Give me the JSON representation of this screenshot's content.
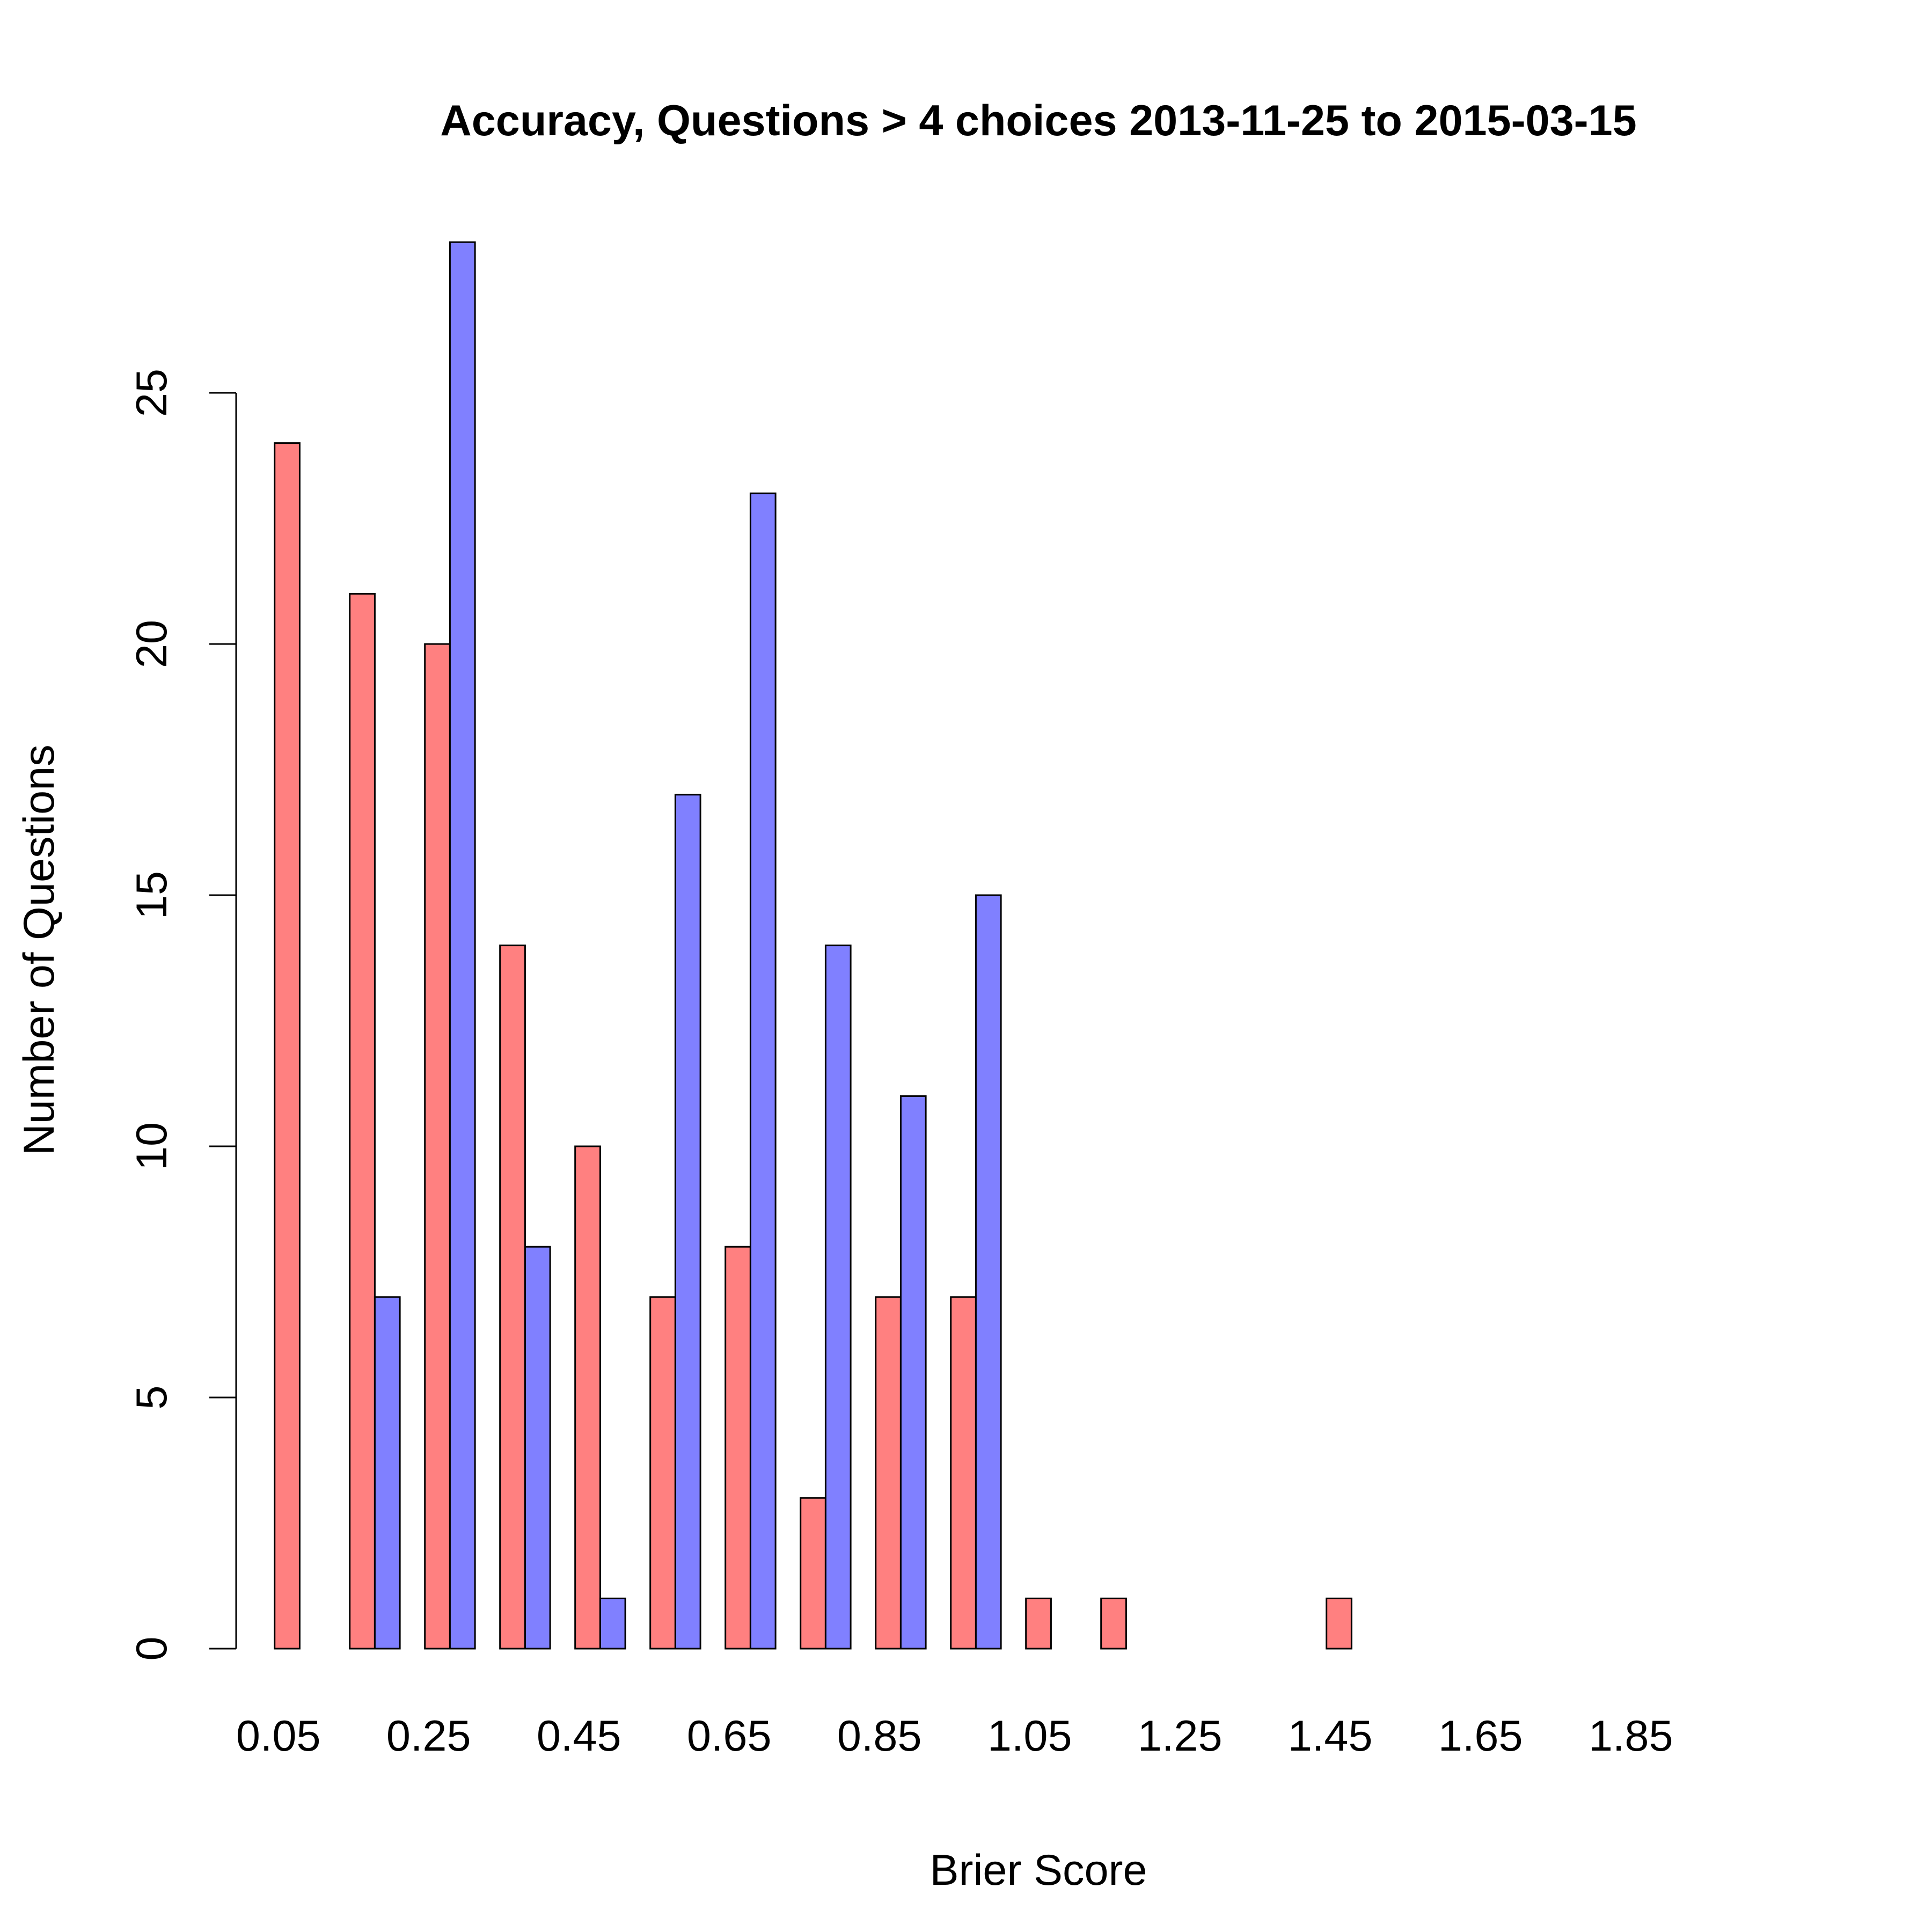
{
  "chart_data": {
    "type": "bar",
    "title": "Accuracy, Questions > 4 choices 2013-11-25 to 2015-03-15",
    "xlabel": "Brier Score",
    "ylabel": "Number of Questions",
    "categories": [
      "0.05",
      "0.15",
      "0.25",
      "0.35",
      "0.45",
      "0.55",
      "0.65",
      "0.75",
      "0.85",
      "0.95",
      "1.05",
      "1.15",
      "1.25",
      "1.35",
      "1.45",
      "1.55",
      "1.65",
      "1.75",
      "1.85",
      "1.95"
    ],
    "x_tick_labels": [
      "0.05",
      "0.25",
      "0.45",
      "0.65",
      "0.85",
      "1.05",
      "1.25",
      "1.45",
      "1.65",
      "1.85"
    ],
    "y_ticks": [
      0,
      5,
      10,
      15,
      20,
      25
    ],
    "ylim": [
      0,
      28
    ],
    "grid": false,
    "legend": "none",
    "series": [
      {
        "color": "#ff8080",
        "values": [
          24,
          21,
          20,
          14,
          10,
          7,
          8,
          3,
          7,
          7,
          1,
          1,
          0,
          0,
          1,
          0,
          0,
          0,
          0,
          0
        ]
      },
      {
        "color": "#8080ff",
        "values": [
          0,
          7,
          28,
          8,
          1,
          17,
          23,
          14,
          11,
          15,
          0,
          0,
          0,
          0,
          0,
          0,
          0,
          0,
          0,
          0
        ]
      }
    ]
  }
}
